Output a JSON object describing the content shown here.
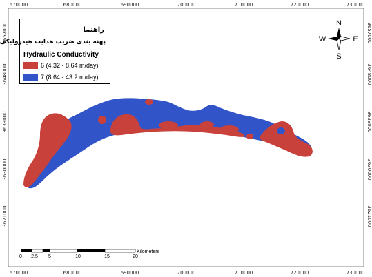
{
  "colors": {
    "class6": "#c8413a",
    "class7": "#3154c8",
    "frame": "#666666"
  },
  "axes": {
    "x_ticks_top": [
      "670000",
      "680000",
      "690000",
      "700000",
      "710000",
      "720000",
      "730000"
    ],
    "x_ticks_bottom": [
      "670000",
      "680000",
      "690000",
      "700000",
      "710000",
      "720000",
      "730000"
    ],
    "y_ticks": [
      "3657000",
      "3648000",
      "3639000",
      "3630000",
      "3621000"
    ]
  },
  "legend": {
    "title": "راهنما",
    "subtitle": "پهنه بندی ضریب هدایت هیدرولیکی",
    "heading": "Hydraulic Conductivity",
    "items": [
      {
        "label": "6 (4.32 - 8.64 m/day)",
        "color_key": "class6"
      },
      {
        "label": "7 (8.64 - 43.2 m/day)",
        "color_key": "class7"
      }
    ]
  },
  "compass": {
    "north": "N",
    "south": "S",
    "east": "E",
    "west": "W",
    "icon": "north-arrow-compass-icon"
  },
  "scale_bar": {
    "unit": "Kilometers",
    "labels": [
      "0",
      "2.5",
      "5",
      "10",
      "15",
      "20"
    ]
  }
}
